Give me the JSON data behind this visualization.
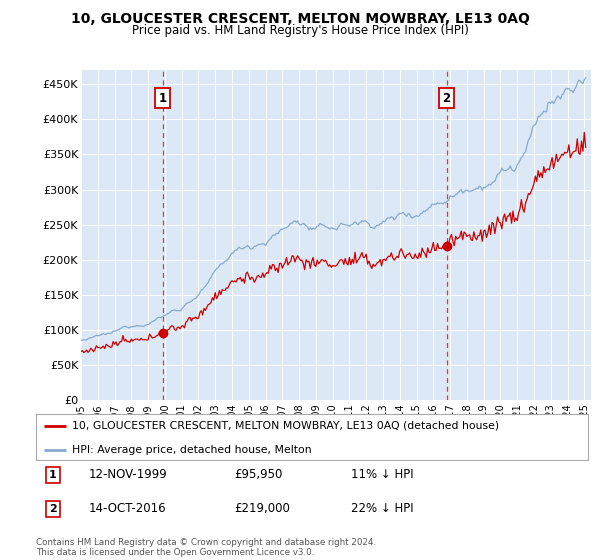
{
  "title": "10, GLOUCESTER CRESCENT, MELTON MOWBRAY, LE13 0AQ",
  "subtitle": "Price paid vs. HM Land Registry's House Price Index (HPI)",
  "ylabel_ticks": [
    "£0",
    "£50K",
    "£100K",
    "£150K",
    "£200K",
    "£250K",
    "£300K",
    "£350K",
    "£400K",
    "£450K"
  ],
  "ytick_values": [
    0,
    50000,
    100000,
    150000,
    200000,
    250000,
    300000,
    350000,
    400000,
    450000
  ],
  "ylim": [
    0,
    470000
  ],
  "xlim_start": 1995.0,
  "xlim_end": 2025.4,
  "marker1_x": 1999.87,
  "marker1_y": 95950,
  "marker2_x": 2016.79,
  "marker2_y": 219000,
  "sale1_date": "12-NOV-1999",
  "sale1_price": "£95,950",
  "sale1_hpi": "11% ↓ HPI",
  "sale2_date": "14-OCT-2016",
  "sale2_price": "£219,000",
  "sale2_hpi": "22% ↓ HPI",
  "legend_line1": "10, GLOUCESTER CRESCENT, MELTON MOWBRAY, LE13 0AQ (detached house)",
  "legend_line2": "HPI: Average price, detached house, Melton",
  "footnote": "Contains HM Land Registry data © Crown copyright and database right 2024.\nThis data is licensed under the Open Government Licence v3.0.",
  "line_color_red": "#cc0000",
  "line_color_blue": "#88aacc",
  "bg_color": "#ffffff",
  "plot_bg_color": "#dce8f5"
}
